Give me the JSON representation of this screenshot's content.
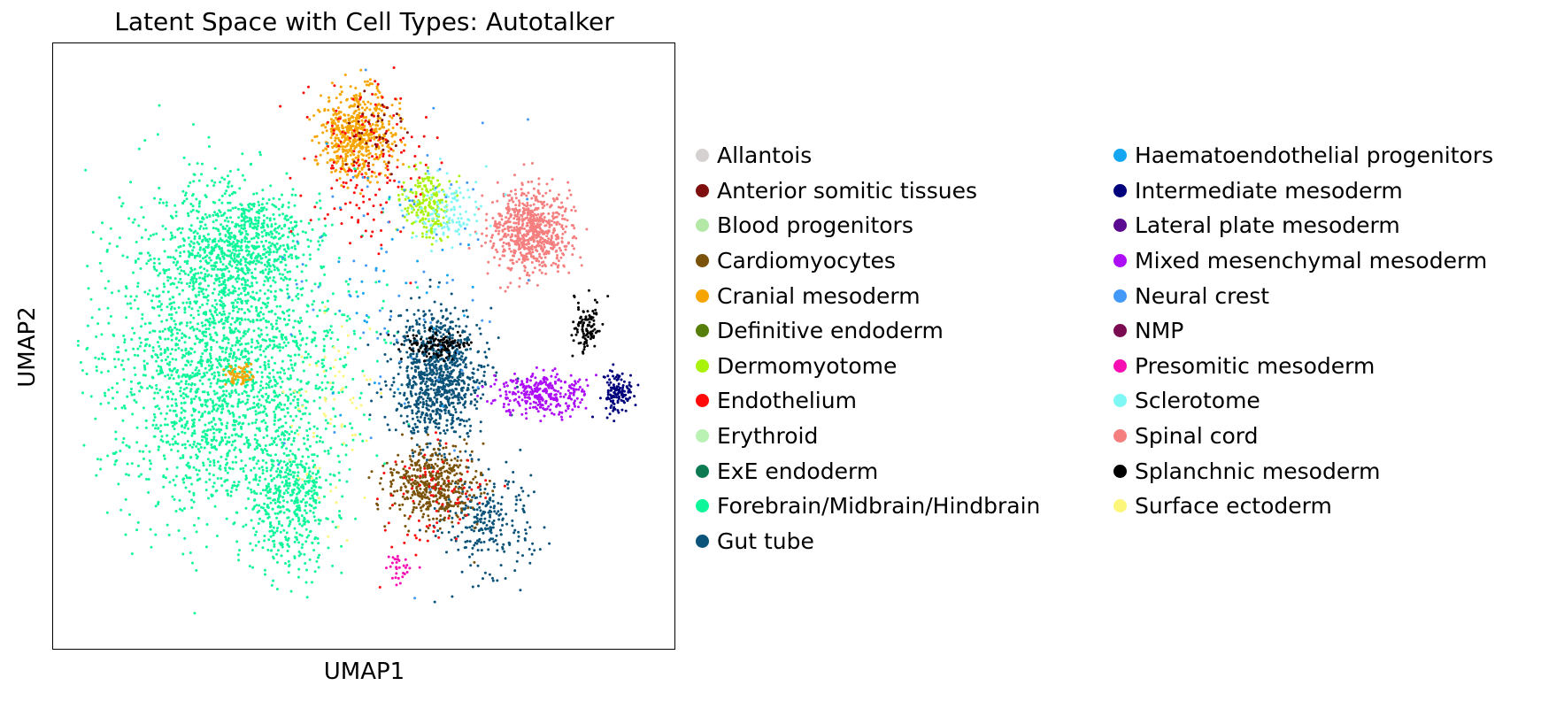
{
  "chart_data": {
    "type": "scatter",
    "title": "Latent Space with Cell Types: Autotalker",
    "xlabel": "UMAP1",
    "ylabel": "UMAP2",
    "grid": false,
    "ticks": false,
    "legend_position": "right",
    "legend_columns": 2,
    "categories": [
      {
        "name": "Allantois",
        "color": "#d5d1d1"
      },
      {
        "name": "Anterior somitic tissues",
        "color": "#7f0f0f"
      },
      {
        "name": "Blood progenitors",
        "color": "#b3e8a6"
      },
      {
        "name": "Cardiomyocytes",
        "color": "#7a5209"
      },
      {
        "name": "Cranial mesoderm",
        "color": "#f6a500"
      },
      {
        "name": "Definitive endoderm",
        "color": "#557e0b"
      },
      {
        "name": "Dermomyotome",
        "color": "#a9f20c"
      },
      {
        "name": "Endothelium",
        "color": "#ff0a0a"
      },
      {
        "name": "Erythroid",
        "color": "#baf2b4"
      },
      {
        "name": "ExE endoderm",
        "color": "#0e7a52"
      },
      {
        "name": "Forebrain/Midbrain/Hindbrain",
        "color": "#0ef59a"
      },
      {
        "name": "Gut tube",
        "color": "#0b5379"
      },
      {
        "name": "Haematoendothelial progenitors",
        "color": "#14a6f0"
      },
      {
        "name": "Intermediate mesoderm",
        "color": "#00007c"
      },
      {
        "name": "Lateral plate mesoderm",
        "color": "#5a0b92"
      },
      {
        "name": "Mixed mesenchymal mesoderm",
        "color": "#ad0ef7"
      },
      {
        "name": "Neural crest",
        "color": "#4399f7"
      },
      {
        "name": "NMP",
        "color": "#7a0b50"
      },
      {
        "name": "Presomitic mesoderm",
        "color": "#f70eb3"
      },
      {
        "name": "Sclerotome",
        "color": "#7ff7f5"
      },
      {
        "name": "Spinal cord",
        "color": "#f57f7f"
      },
      {
        "name": "Splanchnic mesoderm",
        "color": "#000000"
      },
      {
        "name": "Surface ectoderm",
        "color": "#fcf67a"
      }
    ],
    "clusters": [
      {
        "category": "Forebrain/Midbrain/Hindbrain",
        "n": 2200,
        "x": 0.27,
        "y": 0.53,
        "sx": 0.16,
        "sy": 0.21
      },
      {
        "category": "Forebrain/Midbrain/Hindbrain",
        "n": 700,
        "x": 0.3,
        "y": 0.33,
        "sx": 0.09,
        "sy": 0.08
      },
      {
        "category": "Forebrain/Midbrain/Hindbrain",
        "n": 500,
        "x": 0.38,
        "y": 0.75,
        "sx": 0.06,
        "sy": 0.1
      },
      {
        "category": "Cranial mesoderm",
        "n": 550,
        "x": 0.49,
        "y": 0.15,
        "sx": 0.05,
        "sy": 0.06
      },
      {
        "category": "Cranial mesoderm",
        "n": 60,
        "x": 0.3,
        "y": 0.55,
        "sx": 0.02,
        "sy": 0.015
      },
      {
        "category": "Spinal cord",
        "n": 700,
        "x": 0.77,
        "y": 0.31,
        "sx": 0.055,
        "sy": 0.055
      },
      {
        "category": "Gut tube",
        "n": 900,
        "x": 0.62,
        "y": 0.55,
        "sx": 0.06,
        "sy": 0.09
      },
      {
        "category": "Gut tube",
        "n": 250,
        "x": 0.7,
        "y": 0.79,
        "sx": 0.06,
        "sy": 0.07
      },
      {
        "category": "Cardiomyocytes",
        "n": 450,
        "x": 0.61,
        "y": 0.73,
        "sx": 0.06,
        "sy": 0.05
      },
      {
        "category": "Mixed mesenchymal mesoderm",
        "n": 300,
        "x": 0.79,
        "y": 0.58,
        "sx": 0.06,
        "sy": 0.03
      },
      {
        "category": "Dermomyotome",
        "n": 200,
        "x": 0.6,
        "y": 0.26,
        "sx": 0.03,
        "sy": 0.05
      },
      {
        "category": "Splanchnic mesoderm",
        "n": 120,
        "x": 0.62,
        "y": 0.5,
        "sx": 0.04,
        "sy": 0.02
      },
      {
        "category": "Splanchnic mesoderm",
        "n": 100,
        "x": 0.86,
        "y": 0.47,
        "sx": 0.02,
        "sy": 0.04
      },
      {
        "category": "Intermediate mesoderm",
        "n": 120,
        "x": 0.91,
        "y": 0.58,
        "sx": 0.02,
        "sy": 0.03
      },
      {
        "category": "Endothelium",
        "n": 160,
        "x": 0.5,
        "y": 0.2,
        "sx": 0.08,
        "sy": 0.12
      },
      {
        "category": "Endothelium",
        "n": 80,
        "x": 0.61,
        "y": 0.75,
        "sx": 0.07,
        "sy": 0.07
      },
      {
        "category": "Sclerotome",
        "n": 120,
        "x": 0.63,
        "y": 0.28,
        "sx": 0.05,
        "sy": 0.05
      },
      {
        "category": "Neural crest",
        "n": 80,
        "x": 0.55,
        "y": 0.38,
        "sx": 0.15,
        "sy": 0.25
      },
      {
        "category": "Surface ectoderm",
        "n": 70,
        "x": 0.45,
        "y": 0.62,
        "sx": 0.06,
        "sy": 0.15
      },
      {
        "category": "Haematoendothelial progenitors",
        "n": 40,
        "x": 0.55,
        "y": 0.4,
        "sx": 0.12,
        "sy": 0.2
      },
      {
        "category": "Presomitic mesoderm",
        "n": 30,
        "x": 0.56,
        "y": 0.87,
        "sx": 0.02,
        "sy": 0.02
      },
      {
        "category": "Anterior somitic tissues",
        "n": 40,
        "x": 0.52,
        "y": 0.15,
        "sx": 0.04,
        "sy": 0.06
      }
    ]
  }
}
